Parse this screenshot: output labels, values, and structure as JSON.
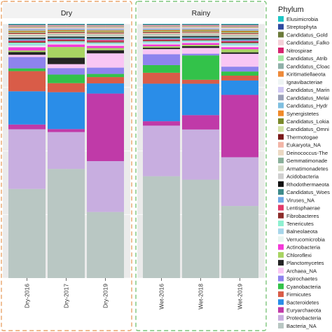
{
  "chart_data": {
    "type": "bar",
    "stacked": true,
    "normalized": true,
    "panels": [
      {
        "title": "Dry",
        "categories": [
          "Dry-2016",
          "Dry-2017",
          "Dry-2019"
        ],
        "border_color": "#e8a46a"
      },
      {
        "title": "Rainy",
        "categories": [
          "Wet-2016",
          "Wet-2018",
          "Wet-2019"
        ],
        "border_color": "#7cc47a"
      }
    ],
    "categories": [
      "Dry-2016",
      "Dry-2017",
      "Dry-2019",
      "Wet-2016",
      "Wet-2018",
      "Wet-2019"
    ],
    "legend": {
      "title": "Phylum",
      "position": "right"
    },
    "series": [
      {
        "name": "Bacteria_NA",
        "color": "#b9c7c3",
        "values": [
          0.354,
          0.471,
          0.273,
          0.439,
          0.445,
          0.281
        ]
      },
      {
        "name": "Proteobacteria",
        "color": "#c8aee0",
        "values": [
          0.237,
          0.159,
          0.21,
          0.218,
          0.227,
          0.19
        ]
      },
      {
        "name": "Euryarchaeota",
        "color": "#c03aa8",
        "values": [
          0.019,
          0.013,
          0.279,
          0.019,
          0.065,
          0.243
        ]
      },
      {
        "name": "Bacteroidetes",
        "color": "#2a8de8",
        "values": [
          0.132,
          0.159,
          0.042,
          0.162,
          0.142,
          0.056
        ]
      },
      {
        "name": "Firmicutes",
        "color": "#d95c48",
        "values": [
          0.08,
          0.039,
          0.026,
          0.047,
          0.018,
          0.019
        ]
      },
      {
        "name": "Cyanobacteria",
        "color": "#33c24a",
        "values": [
          0.011,
          0.037,
          0.013,
          0.033,
          0.11,
          0.016
        ]
      },
      {
        "name": "Spirochaetes",
        "color": "#8e83ee",
        "values": [
          0.045,
          0.028,
          0.026,
          0.047,
          0.008,
          0.019
        ]
      },
      {
        "name": "Archaea_NA",
        "color": "#f9c6f4",
        "values": [
          0.009,
          0.017,
          0.059,
          0.022,
          0.026,
          0.05
        ]
      },
      {
        "name": "Planctomycetes",
        "color": "#242424",
        "values": [
          0.011,
          0.028,
          0.013,
          0.006,
          0.008,
          0.006
        ]
      },
      {
        "name": "Chloroflexi",
        "color": "#a8d462",
        "values": [
          0.006,
          0.046,
          0.009,
          0.006,
          0.006,
          0.012
        ]
      },
      {
        "name": "Actinobacteria",
        "color": "#f33ad8",
        "values": [
          0.013,
          0.011,
          0.009,
          0.008,
          0.008,
          0.008
        ]
      },
      {
        "name": "Verrucomicrobia",
        "color": "#e8f4f0",
        "values": [
          0.006,
          0.004,
          0.006,
          0.004,
          0.004,
          0.006
        ]
      },
      {
        "name": "Balneolaeota",
        "color": "#a7d6ea",
        "values": [
          0.006,
          0.006,
          0.004,
          0.006,
          0.004,
          0.006
        ]
      },
      {
        "name": "Tenericutes",
        "color": "#8ef0d0",
        "values": [
          0.006,
          0.004,
          0.004,
          0.004,
          0.004,
          0.004
        ]
      },
      {
        "name": "Fibrobacteres",
        "color": "#8c2c2a",
        "values": [
          0.004,
          0.004,
          0.004,
          0.004,
          0.004,
          0.004
        ]
      },
      {
        "name": "Lentisphaerae",
        "color": "#e23a6a",
        "values": [
          0.004,
          0.004,
          0.006,
          0.004,
          0.004,
          0.004
        ]
      },
      {
        "name": "Viruses_NA",
        "color": "#6fa8e6",
        "values": [
          0.004,
          0.004,
          0.004,
          0.004,
          0.004,
          0.004
        ]
      },
      {
        "name": "Candidatus_Woesearchaeota",
        "color": "#3d8a8a",
        "values": [
          0.004,
          0.004,
          0.004,
          0.004,
          0.004,
          0.004
        ]
      },
      {
        "name": "Rhodothermaeota",
        "color": "#111111",
        "values": [
          0.004,
          0.004,
          0.004,
          0.004,
          0.004,
          0.004
        ]
      },
      {
        "name": "Acidobacteria",
        "color": "#cfcfcf",
        "values": [
          0.004,
          0.004,
          0.004,
          0.004,
          0.004,
          0.004
        ]
      },
      {
        "name": "Armatimonadetes",
        "color": "#d6dcc8",
        "values": [
          0.003,
          0.003,
          0.003,
          0.003,
          0.003,
          0.003
        ]
      },
      {
        "name": "Gemmatimonadetes",
        "color": "#8ab09a",
        "values": [
          0.003,
          0.003,
          0.003,
          0.003,
          0.003,
          0.003
        ]
      },
      {
        "name": "Deinococcus-Thermus",
        "color": "#ecd9c3",
        "values": [
          0.003,
          0.003,
          0.003,
          0.003,
          0.003,
          0.003
        ]
      },
      {
        "name": "Eukaryota_NA",
        "color": "#f2b5a6",
        "values": [
          0.003,
          0.003,
          0.003,
          0.003,
          0.003,
          0.003
        ]
      },
      {
        "name": "Thermotogae",
        "color": "#7a1a1a",
        "values": [
          0.003,
          0.003,
          0.003,
          0.003,
          0.003,
          0.003
        ]
      },
      {
        "name": "Candidatus_Omnitrophica",
        "color": "#d2e2a6",
        "values": [
          0.003,
          0.003,
          0.003,
          0.003,
          0.003,
          0.003
        ]
      },
      {
        "name": "Candidatus_Lokiarchaeota",
        "color": "#7b8a2a",
        "values": [
          0.003,
          0.003,
          0.003,
          0.003,
          0.003,
          0.003
        ]
      },
      {
        "name": "Synergistetes",
        "color": "#f08a2a",
        "values": [
          0.003,
          0.003,
          0.003,
          0.003,
          0.003,
          0.003
        ]
      },
      {
        "name": "Candidatus_Hydrogenedentes",
        "color": "#7fbfe0",
        "values": [
          0.003,
          0.003,
          0.003,
          0.003,
          0.003,
          0.003
        ]
      },
      {
        "name": "Candidatus_Melainabacteria",
        "color": "#9aa0b8",
        "values": [
          0.003,
          0.003,
          0.003,
          0.003,
          0.003,
          0.003
        ]
      },
      {
        "name": "Candidatus_Marinimicrobia",
        "color": "#d0c8f2",
        "values": [
          0.003,
          0.003,
          0.003,
          0.003,
          0.003,
          0.003
        ]
      },
      {
        "name": "Ignavibacteriae",
        "color": "#eef4f4",
        "values": [
          0.002,
          0.002,
          0.002,
          0.002,
          0.002,
          0.002
        ]
      },
      {
        "name": "Kiritimatiellaeota",
        "color": "#ee8a3a",
        "values": [
          0.002,
          0.002,
          0.002,
          0.002,
          0.002,
          0.002
        ]
      },
      {
        "name": "Candidatus_Cloacimonetes",
        "color": "#8fb0a8",
        "values": [
          0.002,
          0.002,
          0.002,
          0.002,
          0.002,
          0.002
        ]
      },
      {
        "name": "Candidatus_Atribacteria",
        "color": "#a6e8a6",
        "values": [
          0.002,
          0.002,
          0.002,
          0.002,
          0.002,
          0.002
        ]
      },
      {
        "name": "Nitrospirae",
        "color": "#d6246e",
        "values": [
          0.002,
          0.002,
          0.002,
          0.002,
          0.002,
          0.002
        ]
      },
      {
        "name": "Candidatus_Falkowbacteria",
        "color": "#f4d0d8",
        "values": [
          0.002,
          0.002,
          0.002,
          0.002,
          0.002,
          0.002
        ]
      },
      {
        "name": "Candidatus_Goldbacteria",
        "color": "#6b7a3a",
        "values": [
          0.002,
          0.002,
          0.002,
          0.002,
          0.002,
          0.002
        ]
      },
      {
        "name": "Streptophyta",
        "color": "#2f4aa0",
        "values": [
          0.002,
          0.002,
          0.002,
          0.002,
          0.002,
          0.002
        ]
      },
      {
        "name": "Elusimicrobia",
        "color": "#1fc6c6",
        "values": [
          0.002,
          0.002,
          0.002,
          0.002,
          0.002,
          0.002
        ]
      }
    ],
    "legend_labels_shown": [
      "Elusimicrobia",
      "Streptophyta",
      "Candidatus_Gold",
      "Candidatus_Falko",
      "Nitrospirae",
      "Candidatus_Atrib",
      "Candidatus_Cloac",
      "Kiritimatiellaeota",
      "Ignavibacteriae",
      "Candidatus_Marin",
      "Candidatus_Melai",
      "Candidatus_Hydr",
      "Synergistetes",
      "Candidatus_Lokia",
      "Candidatus_Omni",
      "Thermotogae",
      "Eukaryota_NA",
      "Deinococcus-The",
      "Gemmatimonade",
      "Armatimonadetes",
      "Acidobacteria",
      "Rhodothermaeota",
      "Candidatus_Woes",
      "Viruses_NA",
      "Lentisphaerae",
      "Fibrobacteres",
      "Tenericutes",
      "Balneolaeota",
      "Verrucomicrobia",
      "Actinobacteria",
      "Chloroflexi",
      "Planctomycetes",
      "Archaea_NA",
      "Spirochaetes",
      "Cyanobacteria",
      "Firmicutes",
      "Bacteroidetes",
      "Euryarchaeota",
      "Proteobacteria",
      "Bacteria_NA"
    ],
    "ylim": [
      0,
      1
    ],
    "grid": true
  }
}
